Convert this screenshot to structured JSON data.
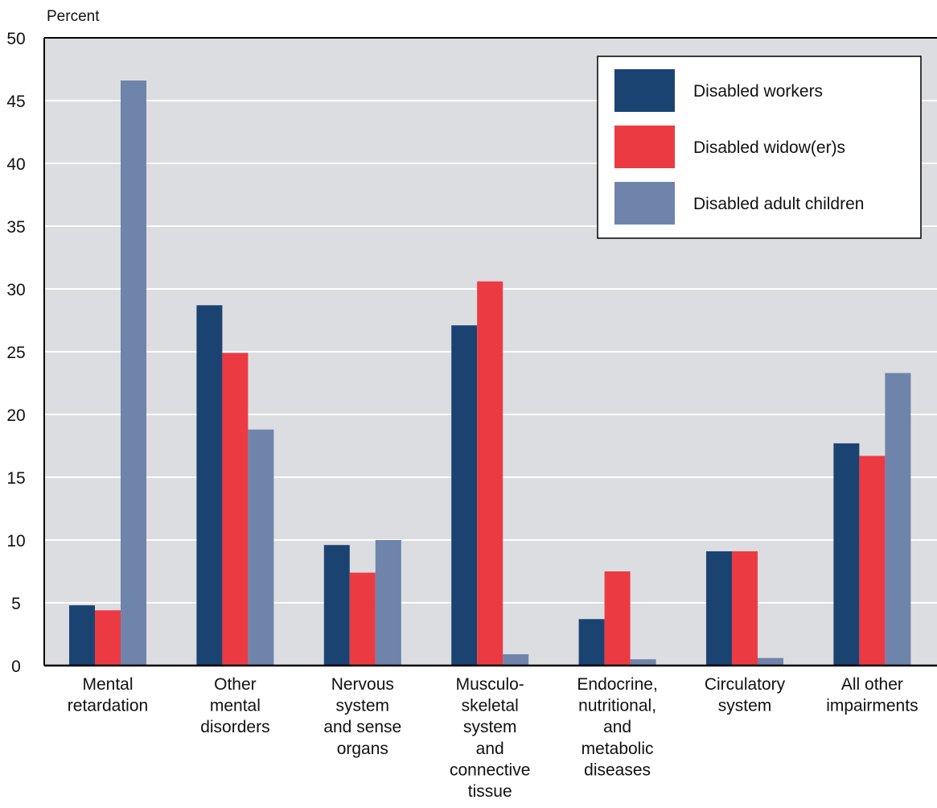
{
  "chart_data": {
    "type": "bar",
    "ylabel": "Percent",
    "ylim": [
      0,
      50
    ],
    "yticks": [
      0,
      5,
      10,
      15,
      20,
      25,
      30,
      35,
      40,
      45,
      50
    ],
    "grid": true,
    "legend_position": "top-right",
    "categories": [
      [
        "Mental",
        "retardation"
      ],
      [
        "Other",
        "mental",
        "disorders"
      ],
      [
        "Nervous",
        "system",
        "and sense",
        "organs"
      ],
      [
        "Musculo-",
        "skeletal",
        "system",
        "and",
        "connective",
        "tissue"
      ],
      [
        "Endocrine,",
        "nutritional,",
        "and",
        "metabolic",
        "diseases"
      ],
      [
        "Circulatory",
        "system"
      ],
      [
        "All other",
        "impairments"
      ]
    ],
    "series": [
      {
        "name": "Disabled workers",
        "color": "#1b4372",
        "values": [
          4.8,
          28.7,
          9.6,
          27.1,
          3.7,
          9.1,
          17.7
        ]
      },
      {
        "name": "Disabled widow(er)s",
        "color": "#ec3a43",
        "values": [
          4.4,
          24.9,
          7.4,
          30.6,
          7.5,
          9.1,
          16.7
        ]
      },
      {
        "name": "Disabled adult children",
        "color": "#6f84aa",
        "values": [
          46.6,
          18.8,
          10.0,
          0.9,
          0.5,
          0.6,
          23.3
        ]
      }
    ],
    "colors": {
      "plot_background": "#dcdde0",
      "grid": "#ffffff",
      "axis": "#000000"
    }
  }
}
